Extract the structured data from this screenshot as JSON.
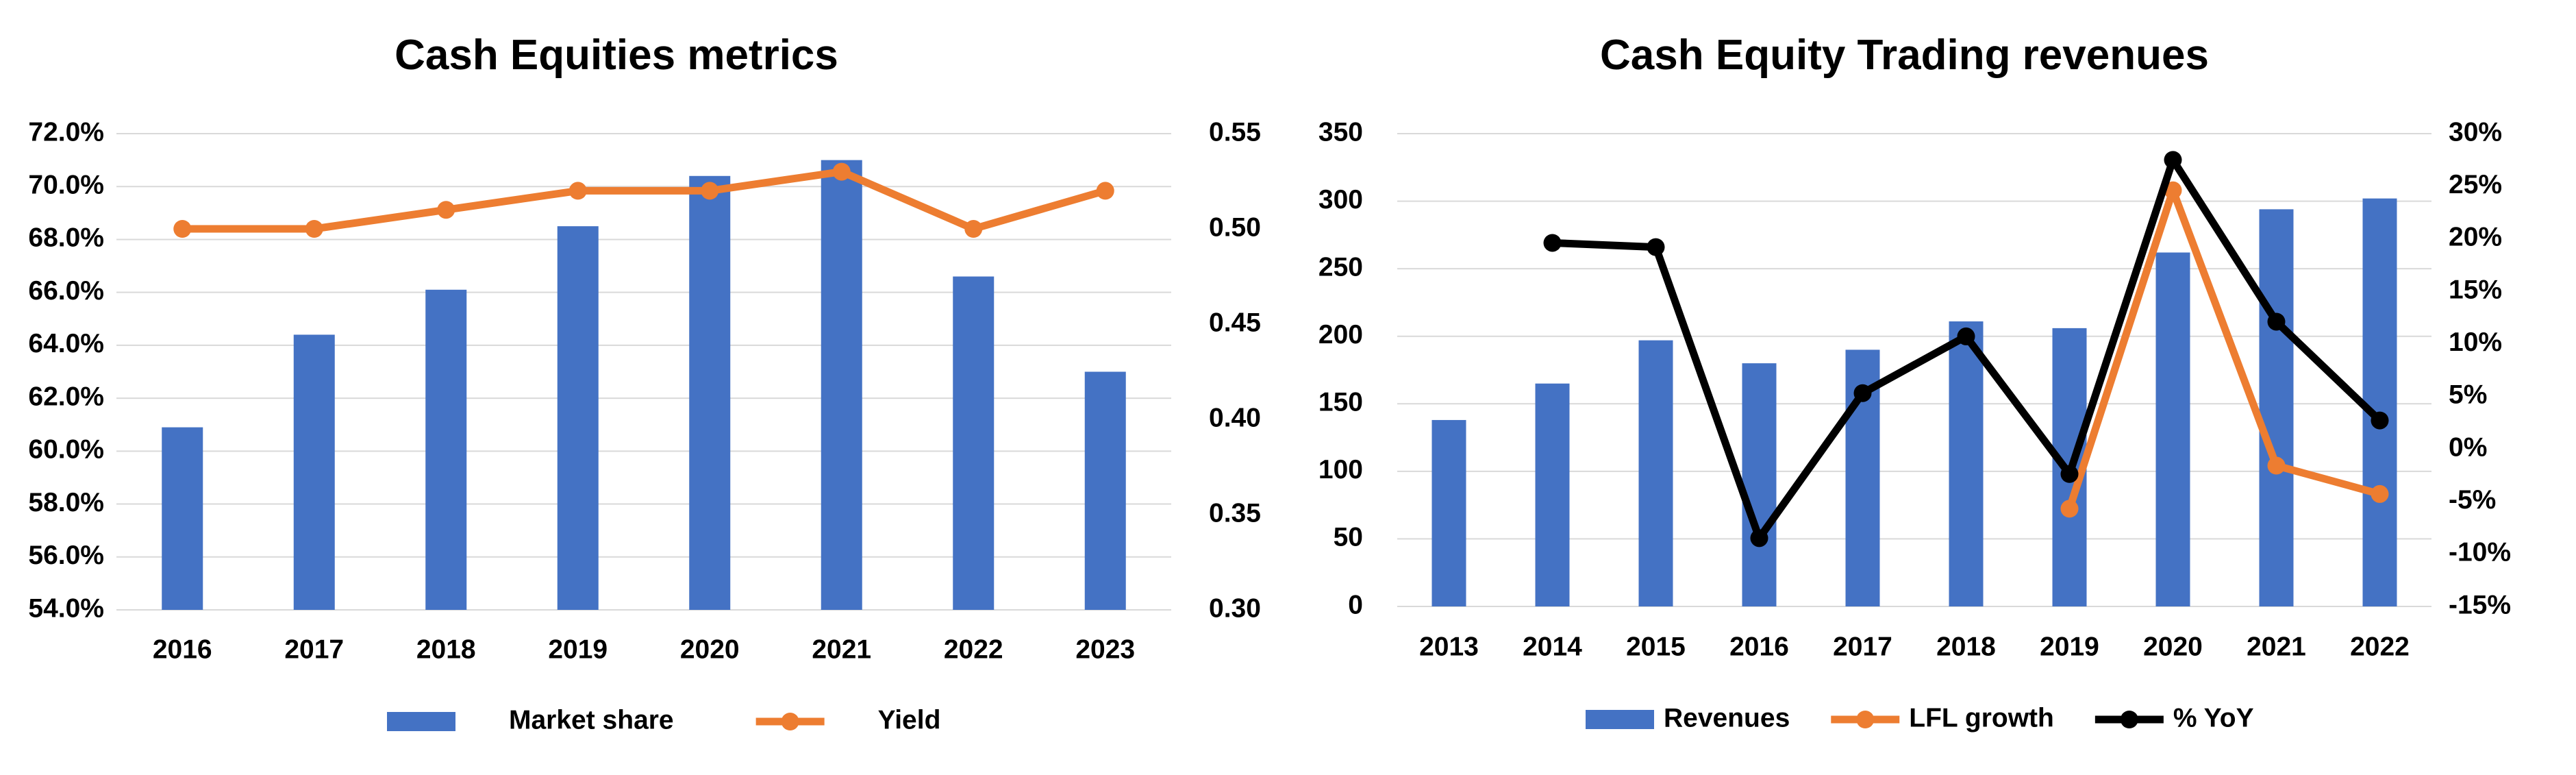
{
  "chart_data": [
    {
      "type": "bar",
      "title": "Cash Equities metrics",
      "categories": [
        "2016",
        "2017",
        "2018",
        "2019",
        "2020",
        "2021",
        "2022",
        "2023"
      ],
      "bar_color": "#4472C4",
      "line_color": "#ED7D31",
      "y_left": {
        "min": 54.0,
        "max": 72.0,
        "step": 2.0,
        "format": "percent1",
        "ticks": [
          "54.0%",
          "56.0%",
          "58.0%",
          "60.0%",
          "62.0%",
          "64.0%",
          "66.0%",
          "68.0%",
          "70.0%",
          "72.0%"
        ]
      },
      "y_right": {
        "min": 0.3,
        "max": 0.55,
        "step": 0.05,
        "format": "fixed2",
        "ticks": [
          "0.30",
          "0.35",
          "0.40",
          "0.45",
          "0.50",
          "0.55"
        ]
      },
      "series": [
        {
          "name": "Market share",
          "kind": "bar",
          "axis": "left",
          "values": [
            60.9,
            64.4,
            66.1,
            68.5,
            70.4,
            71.0,
            66.6,
            63.0
          ]
        },
        {
          "name": "Yield",
          "kind": "line",
          "axis": "right",
          "values": [
            0.5,
            0.5,
            0.51,
            0.52,
            0.52,
            0.53,
            0.5,
            0.52
          ]
        }
      ],
      "grid": "horizontal",
      "legend_position": "bottom"
    },
    {
      "type": "bar",
      "title": "Cash Equity Trading revenues",
      "categories": [
        "2013",
        "2014",
        "2015",
        "2016",
        "2017",
        "2018",
        "2019",
        "2020",
        "2021",
        "2022"
      ],
      "bar_color": "#4472C4",
      "y_left": {
        "min": 0,
        "max": 350,
        "step": 50,
        "format": "int",
        "ticks": [
          "0",
          "50",
          "100",
          "150",
          "200",
          "250",
          "300",
          "350"
        ]
      },
      "y_right": {
        "min": -15,
        "max": 30,
        "step": 5,
        "format": "percent0",
        "ticks": [
          "-15%",
          "-10%",
          "-5%",
          "0%",
          "5%",
          "10%",
          "15%",
          "20%",
          "25%",
          "30%"
        ]
      },
      "series": [
        {
          "name": "Revenues",
          "kind": "bar",
          "axis": "left",
          "color": "#4472C4",
          "values": [
            138,
            165,
            197,
            180,
            190,
            211,
            206,
            262,
            294,
            302
          ]
        },
        {
          "name": "LFL growth",
          "kind": "line",
          "axis": "right",
          "color": "#ED7D31",
          "values": [
            null,
            null,
            null,
            null,
            null,
            null,
            -5.7,
            24.6,
            -1.6,
            -4.3
          ]
        },
        {
          "name": "% YoY",
          "kind": "line",
          "axis": "right",
          "color": "#000000",
          "values": [
            null,
            19.6,
            19.2,
            -8.5,
            5.3,
            10.7,
            -2.4,
            27.5,
            12.1,
            2.7
          ]
        }
      ],
      "grid": "horizontal",
      "legend_position": "bottom"
    }
  ]
}
